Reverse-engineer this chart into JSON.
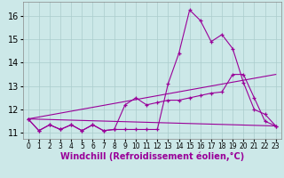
{
  "xlabel": "Windchill (Refroidissement éolien,°C)",
  "background_color": "#cce8e8",
  "grid_color": "#aacccc",
  "line_color": "#990099",
  "x_data": [
    0,
    1,
    2,
    3,
    4,
    5,
    6,
    7,
    8,
    9,
    10,
    11,
    12,
    13,
    14,
    15,
    16,
    17,
    18,
    19,
    20,
    21,
    22,
    23
  ],
  "curve1": [
    11.6,
    11.1,
    11.35,
    11.15,
    11.35,
    11.1,
    11.35,
    11.1,
    11.15,
    11.15,
    11.15,
    11.15,
    11.15,
    13.1,
    14.4,
    16.25,
    15.8,
    14.9,
    15.2,
    14.6,
    13.15,
    12.0,
    11.8,
    11.3
  ],
  "curve2": [
    11.6,
    11.1,
    11.35,
    11.15,
    11.35,
    11.1,
    11.35,
    11.1,
    11.15,
    12.2,
    12.5,
    12.2,
    12.3,
    12.4,
    12.4,
    12.5,
    12.6,
    12.7,
    12.75,
    13.5,
    13.5,
    12.5,
    11.5,
    11.3
  ],
  "line_straight1": [
    [
      0,
      11.6
    ],
    [
      23,
      11.3
    ]
  ],
  "line_straight2": [
    [
      0,
      11.6
    ],
    [
      23,
      13.5
    ]
  ],
  "ylim": [
    10.75,
    16.6
  ],
  "xlim": [
    -0.5,
    23.5
  ],
  "yticks": [
    11,
    12,
    13,
    14,
    15,
    16
  ],
  "xticks": [
    0,
    1,
    2,
    3,
    4,
    5,
    6,
    7,
    8,
    9,
    10,
    11,
    12,
    13,
    14,
    15,
    16,
    17,
    18,
    19,
    20,
    21,
    22,
    23
  ],
  "xlabel_fontsize": 7,
  "ytick_fontsize": 7,
  "xtick_fontsize": 5.5
}
